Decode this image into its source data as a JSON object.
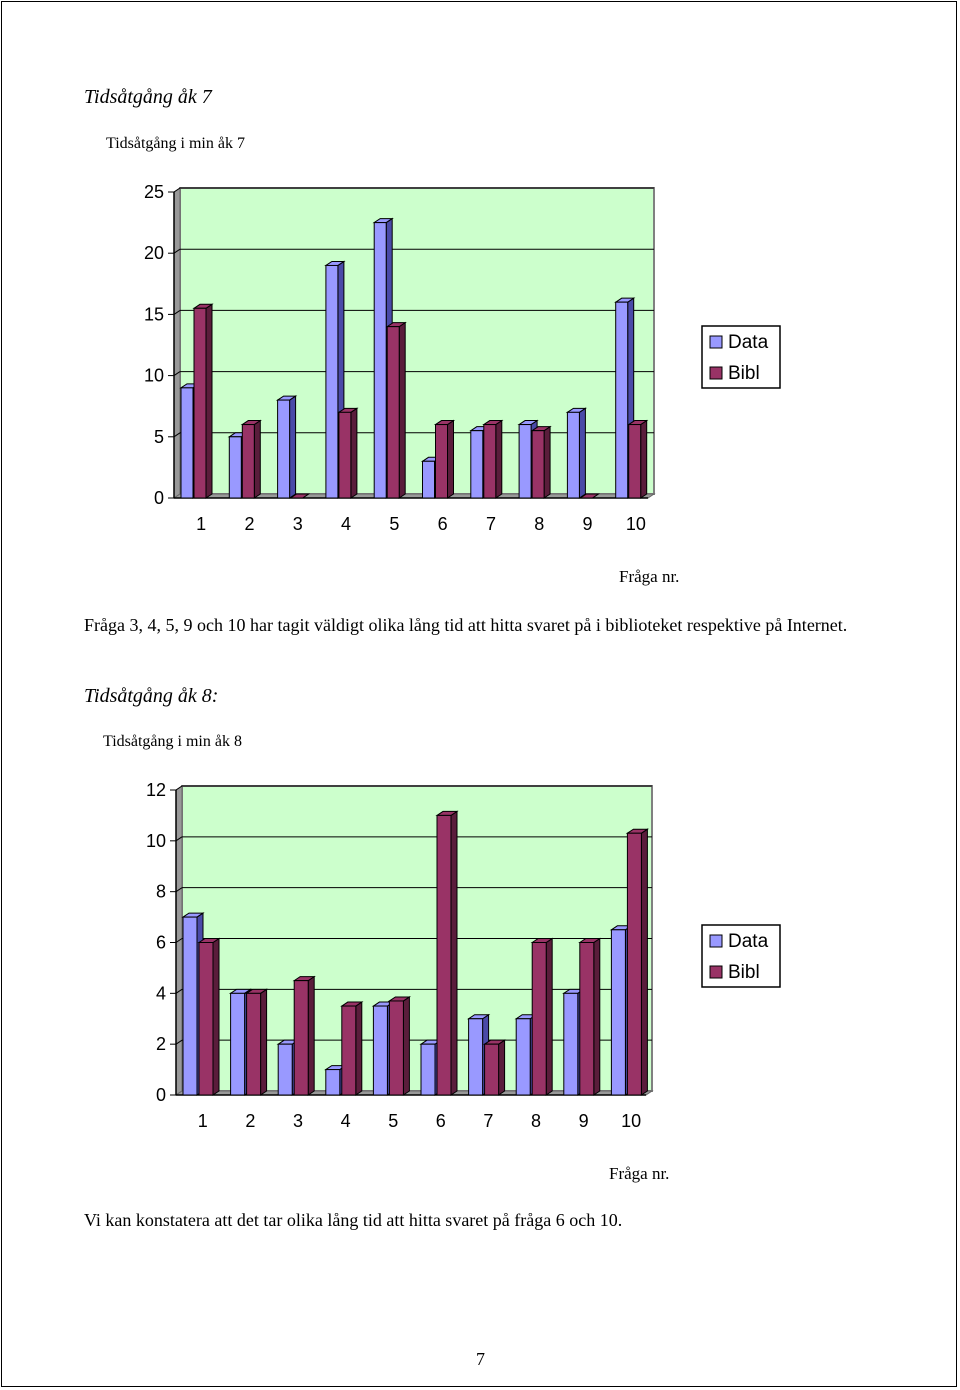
{
  "section1": {
    "heading": "Tidsåtgång åk 7",
    "chart_title": "Tidsåtgång i min åk 7",
    "x_caption": "Fråga nr.",
    "paragraph": "Fråga 3, 4, 5, 9 och 10 har tagit väldigt olika lång tid att hitta svaret på i biblioteket respektive på Internet."
  },
  "section2": {
    "heading": "Tidsåtgång åk 8:",
    "chart_title": "Tidsåtgång i min åk 8",
    "x_caption": "Fråga nr.",
    "paragraph": "Vi kan konstatera att det tar olika lång tid att hitta svaret på fråga 6 och 10."
  },
  "page_number": "7",
  "colors": {
    "plot_bg": "#ccffcc",
    "wall": "#999999",
    "data_face": "#9999ff",
    "data_side": "#4a4aa8",
    "bibl_face": "#993366",
    "bibl_side": "#5a1d3b"
  },
  "chart_data": [
    {
      "type": "bar",
      "title": "Tidsåtgång i min åk 7",
      "xlabel": "Fråga nr.",
      "ylabel": "",
      "categories": [
        "1",
        "2",
        "3",
        "4",
        "5",
        "6",
        "7",
        "8",
        "9",
        "10"
      ],
      "series": [
        {
          "name": "Data",
          "values": [
            9,
            5,
            8,
            19,
            22.5,
            3,
            5.5,
            6,
            7,
            16
          ]
        },
        {
          "name": "Bibl",
          "values": [
            15.5,
            6,
            0,
            7,
            14,
            6,
            6,
            5.5,
            0,
            6
          ]
        }
      ],
      "ylim": [
        0,
        25
      ],
      "yticks": [
        0,
        5,
        10,
        15,
        20,
        25
      ],
      "grid": true,
      "legend": "right"
    },
    {
      "type": "bar",
      "title": "Tidsåtgång i min åk 8",
      "xlabel": "Fråga nr.",
      "ylabel": "",
      "categories": [
        "1",
        "2",
        "3",
        "4",
        "5",
        "6",
        "7",
        "8",
        "9",
        "10"
      ],
      "series": [
        {
          "name": "Data",
          "values": [
            7,
            4,
            2,
            1,
            3.5,
            2,
            3,
            3,
            4,
            6.5
          ]
        },
        {
          "name": "Bibl",
          "values": [
            6,
            4,
            4.5,
            3.5,
            3.7,
            11,
            2,
            6,
            6,
            10.3
          ]
        }
      ],
      "ylim": [
        0,
        12
      ],
      "yticks": [
        0,
        2,
        4,
        6,
        8,
        10,
        12
      ],
      "grid": true,
      "legend": "right"
    }
  ]
}
